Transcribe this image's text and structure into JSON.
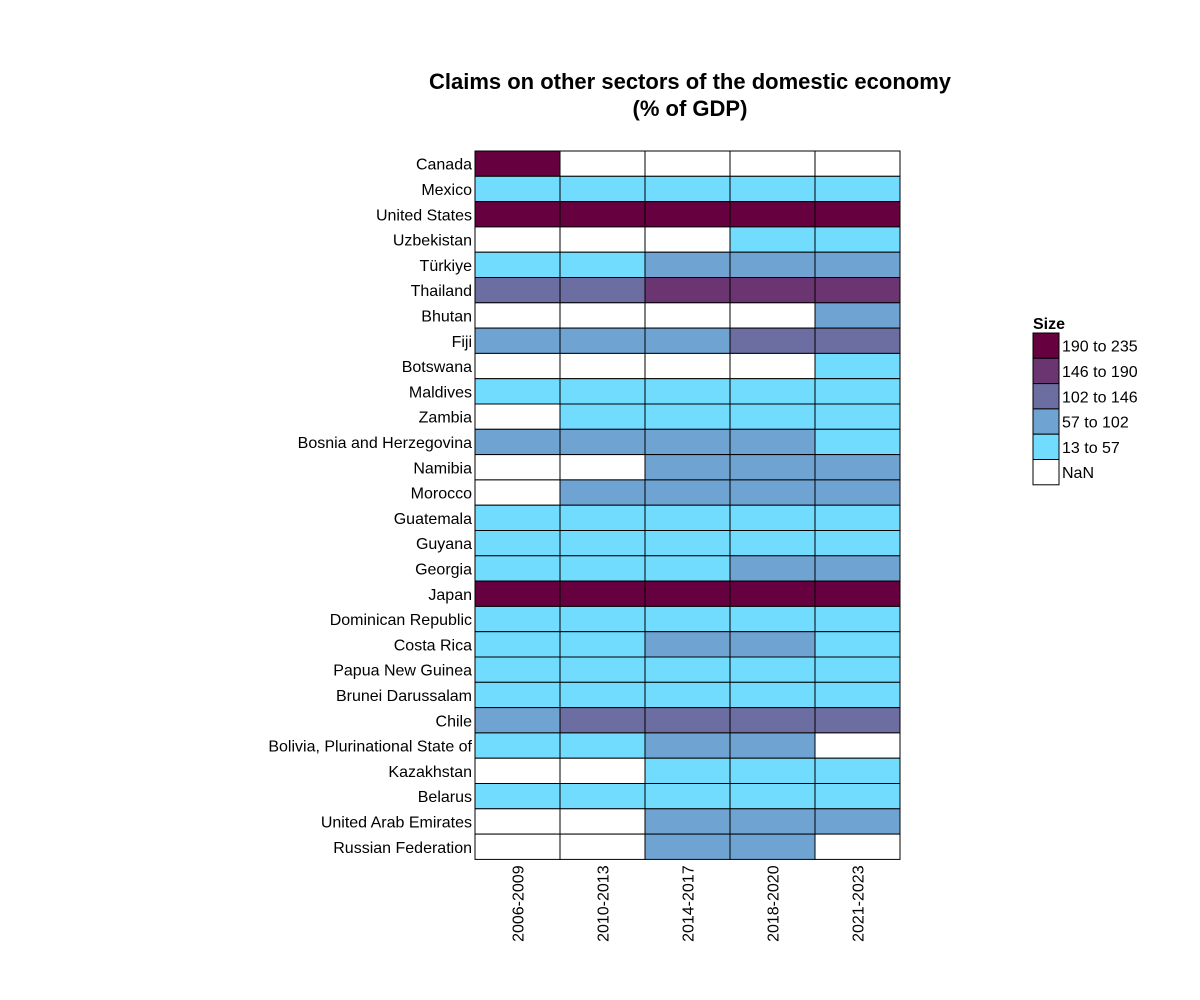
{
  "chart_data": {
    "type": "heatmap",
    "title": "Claims on other sectors of the domestic economy",
    "subtitle": "(% of GDP)",
    "columns": [
      "2006-2009",
      "2010-2013",
      "2014-2017",
      "2018-2020",
      "2021-2023"
    ],
    "rows": [
      "Canada",
      "Mexico",
      "United States",
      "Uzbekistan",
      "Türkiye",
      "Thailand",
      "Bhutan",
      "Fiji",
      "Botswana",
      "Maldives",
      "Zambia",
      "Bosnia and Herzegovina",
      "Namibia",
      "Morocco",
      "Guatemala",
      "Guyana",
      "Georgia",
      "Japan",
      "Dominican Republic",
      "Costa Rica",
      "Papua New Guinea",
      "Brunei Darussalam",
      "Chile",
      "Bolivia, Plurinational State of",
      "Kazakhstan",
      "Belarus",
      "United Arab Emirates",
      "Russian Federation"
    ],
    "categories": [
      "13 to 57",
      "57 to 102",
      "102 to 146",
      "146 to 190",
      "190 to 235"
    ],
    "cells": [
      [
        4,
        null,
        null,
        null,
        null
      ],
      [
        0,
        0,
        0,
        0,
        0
      ],
      [
        4,
        4,
        4,
        4,
        4
      ],
      [
        null,
        null,
        null,
        0,
        0
      ],
      [
        0,
        0,
        1,
        1,
        1
      ],
      [
        2,
        2,
        3,
        3,
        3
      ],
      [
        null,
        null,
        null,
        null,
        1
      ],
      [
        1,
        1,
        1,
        2,
        2
      ],
      [
        null,
        null,
        null,
        null,
        0
      ],
      [
        0,
        0,
        0,
        0,
        0
      ],
      [
        null,
        0,
        0,
        0,
        0
      ],
      [
        1,
        1,
        1,
        1,
        0
      ],
      [
        null,
        null,
        1,
        1,
        1
      ],
      [
        null,
        1,
        1,
        1,
        1
      ],
      [
        0,
        0,
        0,
        0,
        0
      ],
      [
        0,
        0,
        0,
        0,
        0
      ],
      [
        0,
        0,
        0,
        1,
        1
      ],
      [
        4,
        4,
        4,
        4,
        4
      ],
      [
        0,
        0,
        0,
        0,
        0
      ],
      [
        0,
        0,
        1,
        1,
        0
      ],
      [
        0,
        0,
        0,
        0,
        0
      ],
      [
        0,
        0,
        0,
        0,
        0
      ],
      [
        1,
        2,
        2,
        2,
        2
      ],
      [
        0,
        0,
        1,
        1,
        null
      ],
      [
        null,
        null,
        0,
        0,
        0
      ],
      [
        0,
        0,
        0,
        0,
        0
      ],
      [
        null,
        null,
        1,
        1,
        1
      ],
      [
        null,
        null,
        1,
        1,
        null
      ]
    ],
    "legend": {
      "title": "Size",
      "placement": "right",
      "items": [
        {
          "label": "190 to 235",
          "category": 4
        },
        {
          "label": "146 to 190",
          "category": 3
        },
        {
          "label": "102 to 146",
          "category": 2
        },
        {
          "label": "57 to 102",
          "category": 1
        },
        {
          "label": "13 to 57",
          "category": 0
        },
        {
          "label": "NaN",
          "category": null
        }
      ]
    },
    "colors": {
      "13 to 57": "#72dcfe",
      "57 to 102": "#6fa4d2",
      "102 to 146": "#6c6da0",
      "146 to 190": "#6a3571",
      "190 to 235": "#66003f",
      "NaN": "#ffffff",
      "border": "#000000"
    }
  }
}
